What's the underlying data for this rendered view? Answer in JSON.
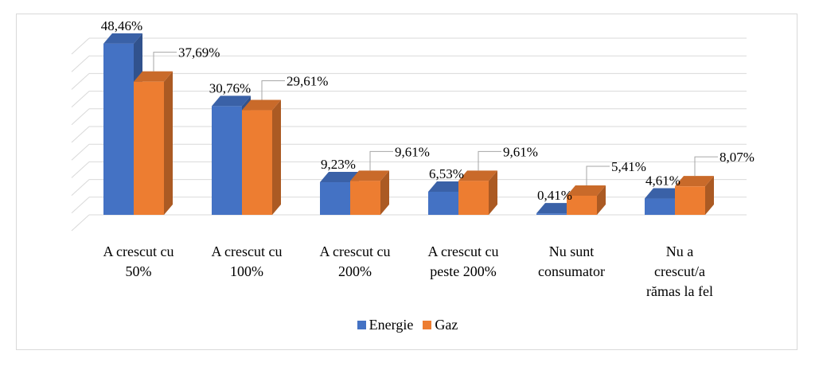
{
  "chart_data": {
    "type": "bar",
    "categories": [
      [
        "A crescut cu",
        "50%"
      ],
      [
        "A crescut cu",
        "100%"
      ],
      [
        "A crescut cu",
        "200%"
      ],
      [
        "A crescut cu",
        "peste 200%"
      ],
      [
        "Nu sunt",
        "consumator"
      ],
      [
        "Nu a",
        "crescut/a",
        "rămas la fel"
      ]
    ],
    "series": [
      {
        "name": "Energie",
        "values": [
          48.46,
          30.76,
          9.23,
          6.53,
          0.41,
          4.61
        ],
        "labels": [
          "48,46%",
          "30,76%",
          "9,23%",
          "6,53%",
          "0,41%",
          "4,61%"
        ],
        "color": "#4472C4"
      },
      {
        "name": "Gaz",
        "values": [
          37.69,
          29.61,
          9.61,
          9.61,
          5.41,
          8.07
        ],
        "labels": [
          "37,69%",
          "29,61%",
          "9,61%",
          "9,61%",
          "5,41%",
          "8,07%"
        ],
        "color": "#ED7D31"
      }
    ],
    "ylim": [
      0,
      50
    ],
    "grid": true,
    "legend_position": "bottom",
    "three_d": true
  }
}
